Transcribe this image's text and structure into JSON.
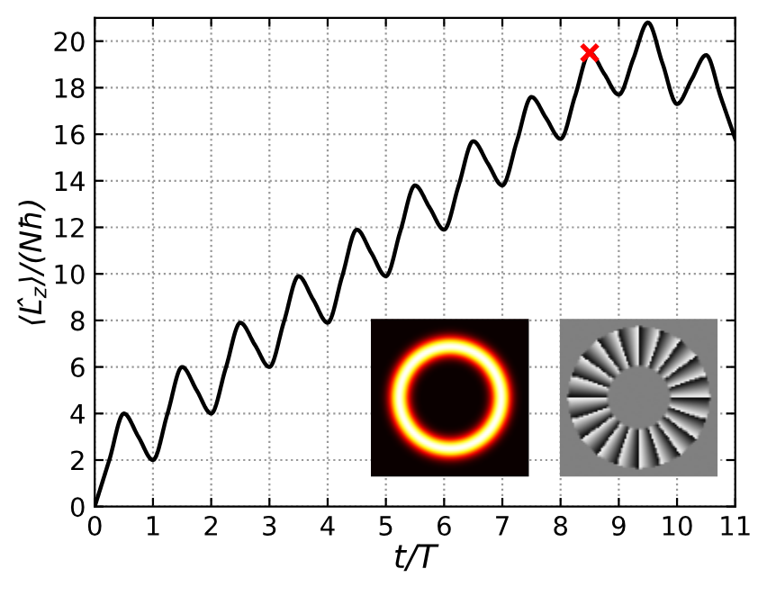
{
  "chart_data": {
    "type": "line",
    "xlabel": "t/T",
    "ylabel": "⟨L̂$_{z}$⟩/(Nħ)",
    "xlim": [
      0,
      11
    ],
    "ylim": [
      0,
      21
    ],
    "xticks": [
      0,
      1,
      2,
      3,
      4,
      5,
      6,
      7,
      8,
      9,
      10,
      11
    ],
    "yticks": [
      0,
      2,
      4,
      6,
      8,
      10,
      12,
      14,
      16,
      18,
      20
    ],
    "grid": true,
    "series": [
      {
        "color": "#000000",
        "line_style": "solid",
        "marker": "none",
        "x": [
          0,
          0.25,
          0.5,
          0.75,
          1,
          1.25,
          1.5,
          1.75,
          2,
          2.25,
          2.5,
          2.75,
          3,
          3.25,
          3.5,
          3.75,
          4,
          4.25,
          4.5,
          4.75,
          5,
          5.25,
          5.5,
          5.75,
          6,
          6.25,
          6.5,
          6.75,
          7,
          7.25,
          7.5,
          7.75,
          8,
          8.25,
          8.5,
          8.75,
          9,
          9.25,
          9.5,
          9.75,
          10,
          10.25,
          10.5,
          10.75,
          11
        ],
        "values": [
          0,
          2,
          4,
          3,
          2,
          4,
          6,
          5,
          4,
          5.95,
          7.9,
          6.95,
          6,
          7.95,
          9.9,
          8.9,
          7.9,
          9.9,
          11.9,
          10.9,
          9.9,
          11.85,
          13.8,
          12.85,
          11.9,
          13.8,
          15.7,
          14.75,
          13.8,
          15.7,
          17.6,
          16.7,
          15.8,
          17.65,
          19.5,
          18.6,
          17.7,
          19.25,
          20.8,
          19.05,
          17.3,
          18.35,
          19.4,
          17.6,
          15.8
        ]
      },
      {
        "type": "scatter",
        "color": "#ff0000",
        "marker": "cross",
        "x": [
          8.5
        ],
        "values": [
          19.5
        ]
      }
    ]
  }
}
